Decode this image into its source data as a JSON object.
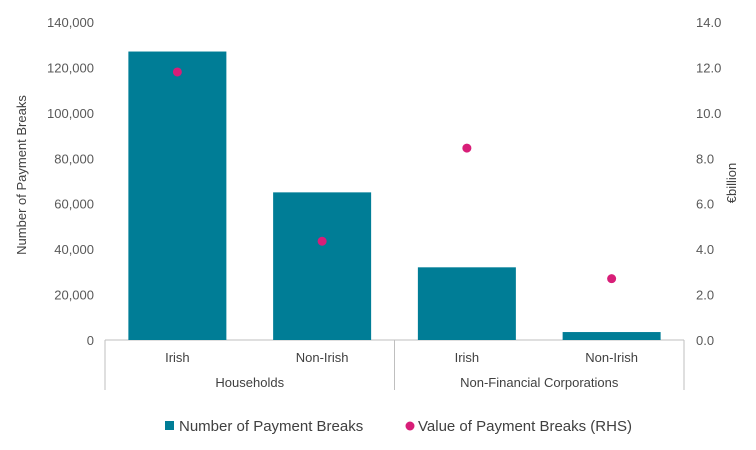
{
  "chart_data": {
    "type": "bar",
    "title": "",
    "categories": [
      "Irish",
      "Non-Irish",
      "Irish",
      "Non-Irish"
    ],
    "groups": [
      {
        "label": "Households",
        "span": [
          0,
          1
        ]
      },
      {
        "label": "Non-Financial Corporations",
        "span": [
          2,
          3
        ]
      }
    ],
    "series": [
      {
        "name": "Number of Payment Breaks",
        "type": "bar",
        "axis": "left",
        "color": "#007d96",
        "values": [
          127000,
          65000,
          32000,
          3500
        ]
      },
      {
        "name": "Value of Payment Breaks (RHS)",
        "type": "scatter",
        "axis": "right",
        "color": "#d81e78",
        "values": [
          11.8,
          4.35,
          8.45,
          2.7
        ]
      }
    ],
    "y_left": {
      "label": "Number of Payment Breaks",
      "ylim": [
        0,
        140000
      ],
      "ticks": [
        "0",
        "20,000",
        "40,000",
        "60,000",
        "80,000",
        "100,000",
        "120,000",
        "140,000"
      ]
    },
    "y_right": {
      "label": "€billion",
      "ylim": [
        0,
        14
      ],
      "ticks": [
        "0.0",
        "2.0",
        "4.0",
        "6.0",
        "8.0",
        "10.0",
        "12.0",
        "14.0"
      ]
    },
    "grid": false,
    "legend_position": "bottom"
  }
}
